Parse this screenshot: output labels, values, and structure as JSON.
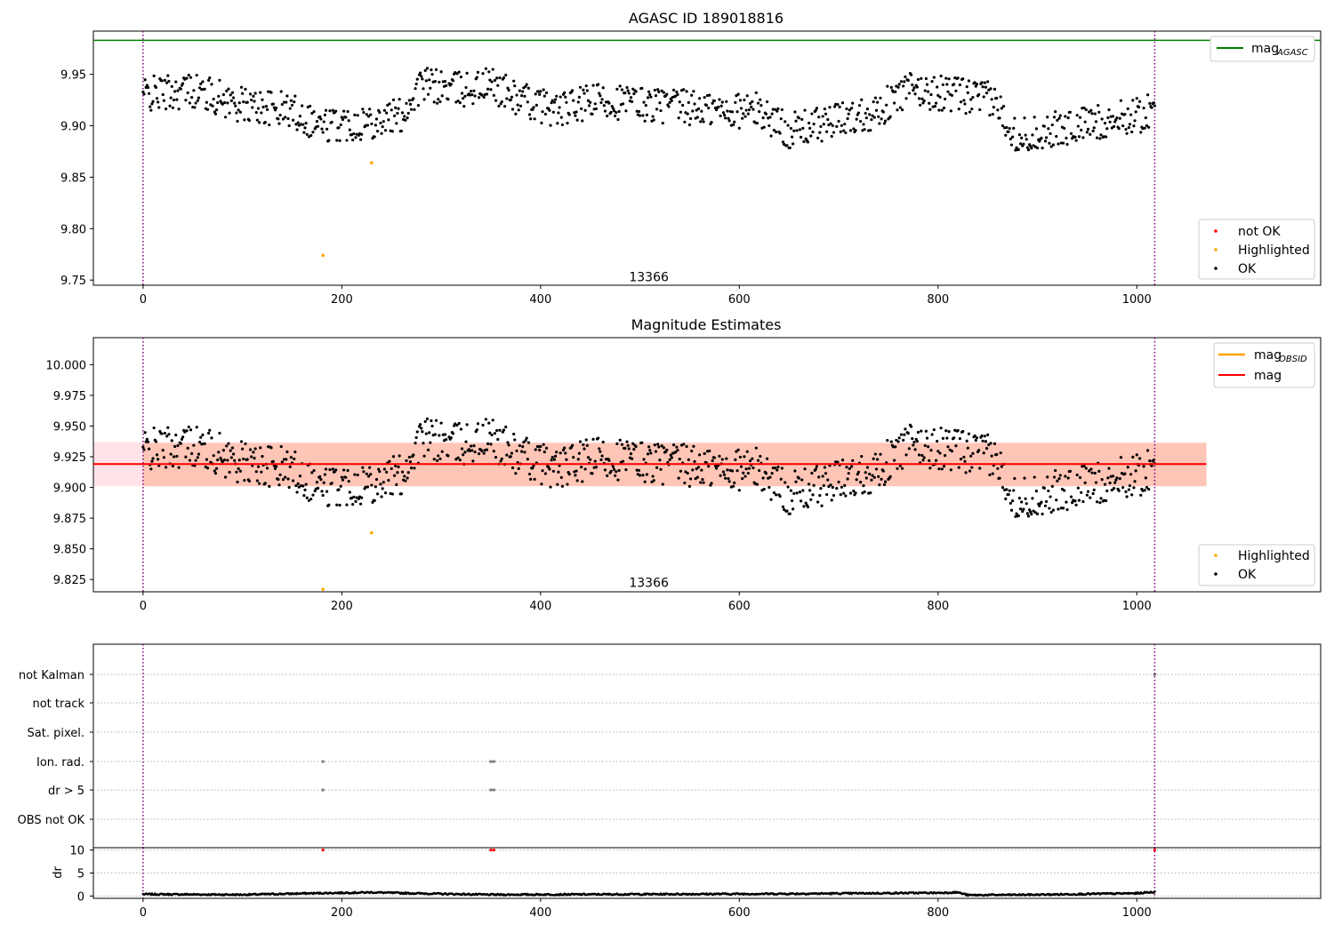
{
  "figure_title": "AGASC ID 189018816",
  "colors": {
    "ok": "#000000",
    "not_ok": "#ff0000",
    "highlighted": "#ffa500",
    "mag_agasc": "#008000",
    "mag_obsid": "#ffa500",
    "mag": "#ff0000",
    "obs_band": "#ffa07a",
    "mag_band": "#ffc0cb",
    "obs_boundary": "#800080",
    "grid": "#b0b0b0"
  },
  "chart_data": [
    {
      "type": "scatter",
      "title": "AGASC ID 189018816",
      "x_range": [
        -50,
        1185
      ],
      "y_range": [
        9.745,
        9.992
      ],
      "x_ticks": [
        0,
        200,
        400,
        600,
        800,
        1000
      ],
      "y_ticks": [
        9.75,
        9.8,
        9.85,
        9.9,
        9.95
      ],
      "y_tick_labels": [
        "9.75",
        "9.80",
        "9.85",
        "9.90",
        "9.95"
      ],
      "obs_boundaries": [
        0,
        1018
      ],
      "obsid_annotation": {
        "text": "13366",
        "x": 509,
        "y": 9.749
      },
      "mag_agasc": {
        "label": "mag",
        "subscript": "AGASC",
        "value": 9.983,
        "x_range": [
          -50,
          1185
        ]
      },
      "series_legend": [
        "not OK",
        "Highlighted",
        "OK"
      ],
      "ok_trend": [
        [
          0,
          9.93
        ],
        [
          50,
          9.935
        ],
        [
          100,
          9.92
        ],
        [
          150,
          9.915
        ],
        [
          180,
          9.9
        ],
        [
          230,
          9.905
        ],
        [
          260,
          9.91
        ],
        [
          280,
          9.94
        ],
        [
          320,
          9.935
        ],
        [
          350,
          9.94
        ],
        [
          380,
          9.925
        ],
        [
          420,
          9.915
        ],
        [
          460,
          9.925
        ],
        [
          520,
          9.92
        ],
        [
          580,
          9.915
        ],
        [
          620,
          9.915
        ],
        [
          650,
          9.895
        ],
        [
          700,
          9.905
        ],
        [
          740,
          9.915
        ],
        [
          770,
          9.935
        ],
        [
          820,
          9.93
        ],
        [
          855,
          9.925
        ],
        [
          880,
          9.89
        ],
        [
          940,
          9.9
        ],
        [
          1000,
          9.91
        ],
        [
          1018,
          9.915
        ]
      ],
      "ok_scatter_width": 0.035,
      "ok_x_range": [
        0,
        1018
      ],
      "highlighted": [
        {
          "x": 181,
          "y": 9.774
        },
        {
          "x": 230,
          "y": 9.864
        }
      ],
      "not_ok": []
    },
    {
      "type": "scatter",
      "title": "Magnitude Estimates",
      "x_range": [
        -50,
        1185
      ],
      "y_range": [
        9.815,
        10.022
      ],
      "x_ticks": [
        0,
        200,
        400,
        600,
        800,
        1000
      ],
      "y_ticks": [
        9.825,
        9.85,
        9.875,
        9.9,
        9.925,
        9.95,
        9.975,
        10.0
      ],
      "y_tick_labels": [
        "9.825",
        "9.850",
        "9.875",
        "9.900",
        "9.925",
        "9.950",
        "9.975",
        "10.000"
      ],
      "obs_boundaries": [
        0,
        1018
      ],
      "obsid_annotation": {
        "text": "13366",
        "x": 509,
        "y": 9.819
      },
      "mag_obsid": {
        "label": "mag",
        "subscript": "OBSID",
        "value": 9.919,
        "band": [
          9.901,
          9.936
        ],
        "x_range": [
          -50,
          1070
        ]
      },
      "mag": {
        "label": "mag",
        "value": 9.919,
        "band": [
          9.901,
          9.937
        ],
        "x_range": [
          -50,
          1070
        ]
      },
      "series_legend": [
        "Highlighted",
        "OK"
      ],
      "highlighted": [
        {
          "x": 230,
          "y": 9.863
        },
        {
          "x": 181,
          "y": 9.817
        }
      ]
    },
    {
      "type": "flags",
      "x_range": [
        -50,
        1185
      ],
      "x_ticks": [
        0,
        200,
        400,
        600,
        800,
        1000
      ],
      "flag_rows": [
        "not Kalman",
        "not track",
        "Sat. pixel.",
        "Ion. rad.",
        "dr > 5",
        "OBS not OK"
      ],
      "flag_points": [
        {
          "row": "Ion. rad.",
          "x": 181
        },
        {
          "row": "Ion. rad.",
          "x": 350
        },
        {
          "row": "Ion. rad.",
          "x": 353
        },
        {
          "row": "dr > 5",
          "x": 181
        },
        {
          "row": "dr > 5",
          "x": 350
        },
        {
          "row": "dr > 5",
          "x": 353
        },
        {
          "row": "not Kalman",
          "x": 1018
        }
      ],
      "obs_boundaries": [
        0,
        1018
      ]
    },
    {
      "type": "scatter",
      "ylabel": "dr",
      "x_range": [
        -50,
        1185
      ],
      "y_range": [
        -0.5,
        10.5
      ],
      "y_ticks": [
        0,
        5,
        10
      ],
      "x_ticks": [
        0,
        200,
        400,
        600,
        800,
        1000
      ],
      "x_tick_labels": [
        "0",
        "200",
        "400",
        "600",
        "800",
        "1000"
      ],
      "dr_trend": [
        [
          0,
          0.4
        ],
        [
          100,
          0.3
        ],
        [
          170,
          0.6
        ],
        [
          230,
          0.8
        ],
        [
          270,
          0.6
        ],
        [
          350,
          0.3
        ],
        [
          500,
          0.4
        ],
        [
          650,
          0.5
        ],
        [
          800,
          0.7
        ],
        [
          820,
          0.8
        ],
        [
          830,
          0.2
        ],
        [
          900,
          0.3
        ],
        [
          1000,
          0.6
        ],
        [
          1018,
          0.9
        ]
      ],
      "dr_outliers": [
        {
          "x": 181,
          "y": 10
        },
        {
          "x": 350,
          "y": 10
        },
        {
          "x": 353,
          "y": 10
        },
        {
          "x": 1018,
          "y": 10
        }
      ],
      "obs_boundaries": [
        0,
        1018
      ]
    }
  ]
}
